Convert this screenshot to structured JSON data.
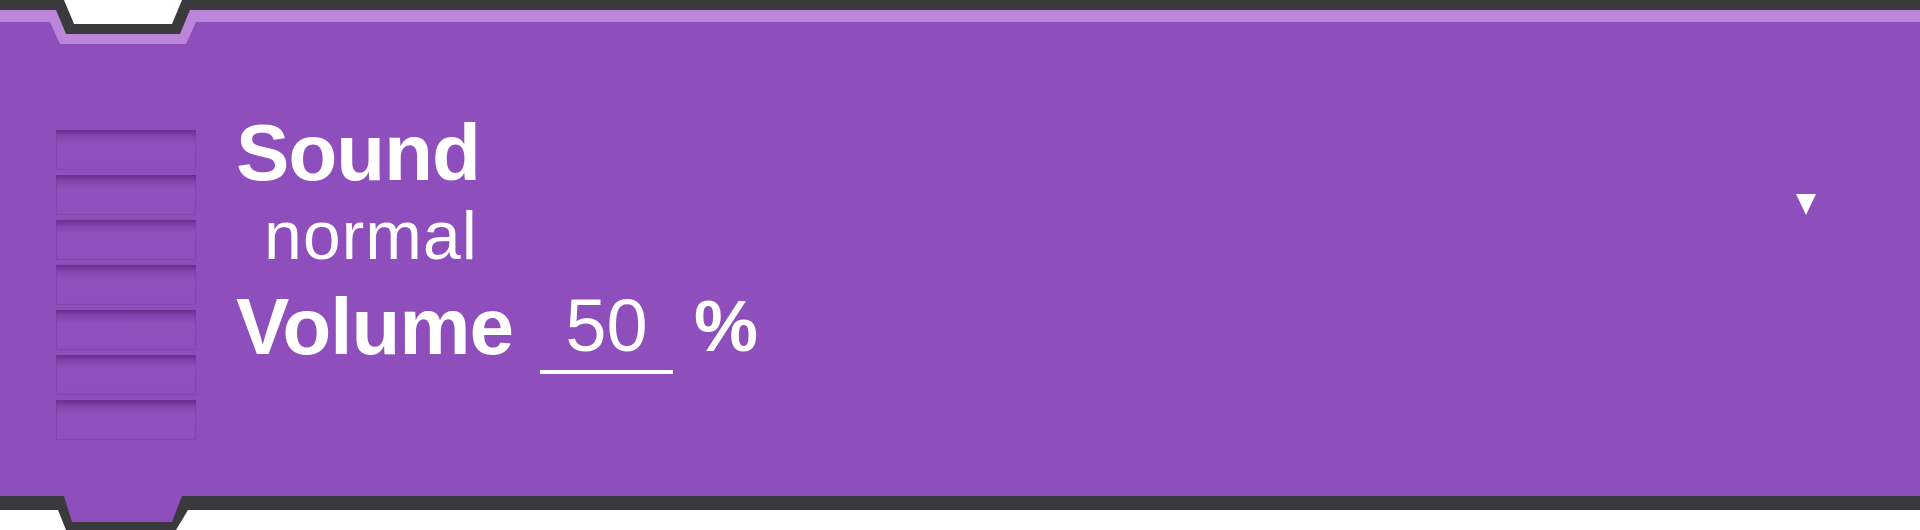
{
  "block": {
    "title": "Sound",
    "mode_value": "normal",
    "volume_label": "Volume",
    "volume_value": "50",
    "volume_unit": "%",
    "dropdown_icon": "caret-down-icon"
  },
  "colors": {
    "block_fill": "#8E4EBB",
    "block_highlight": "#BB86DA",
    "outline": "#3A3A3C",
    "text": "#FFFFFF"
  }
}
